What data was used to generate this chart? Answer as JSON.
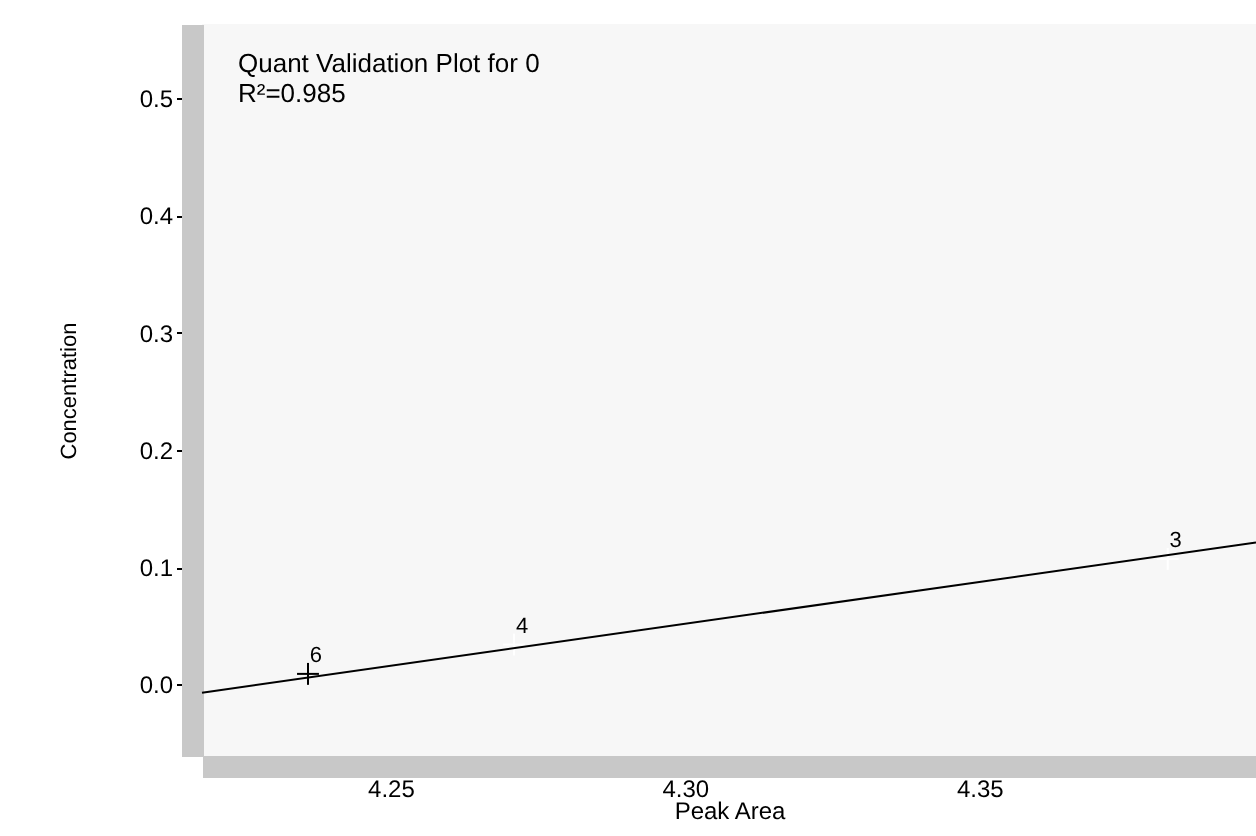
{
  "chart_data": {
    "type": "scatter",
    "title": "Quant Validation Plot for 0",
    "subtitle": "R²=0.985",
    "xlabel": "Peak Area",
    "ylabel": "Concentration",
    "xlim": [
      4.218,
      4.397
    ],
    "ylim": [
      -0.061,
      0.563
    ],
    "xticks": [
      {
        "value": 4.22,
        "label": null
      },
      {
        "value": 4.23,
        "label": null
      },
      {
        "value": 4.24,
        "label": null
      },
      {
        "value": 4.25,
        "label": "4.25"
      },
      {
        "value": 4.26,
        "label": null
      },
      {
        "value": 4.27,
        "label": null
      },
      {
        "value": 4.28,
        "label": null
      },
      {
        "value": 4.29,
        "label": null
      },
      {
        "value": 4.3,
        "label": "4.30"
      },
      {
        "value": 4.31,
        "label": null
      },
      {
        "value": 4.32,
        "label": null
      },
      {
        "value": 4.33,
        "label": null
      },
      {
        "value": 4.34,
        "label": null
      },
      {
        "value": 4.35,
        "label": "4.35"
      },
      {
        "value": 4.36,
        "label": null
      },
      {
        "value": 4.37,
        "label": null
      },
      {
        "value": 4.38,
        "label": null
      },
      {
        "value": 4.39,
        "label": null
      }
    ],
    "yticks": [
      {
        "value": 0,
        "label": "0.0"
      },
      {
        "value": 0.1,
        "label": "0.1"
      },
      {
        "value": 0.2,
        "label": "0.2"
      },
      {
        "value": 0.3,
        "label": "0.3"
      },
      {
        "value": 0.4,
        "label": "0.4"
      },
      {
        "value": 0.5,
        "label": "0.5"
      }
    ],
    "grid": false,
    "legend": false,
    "series": [
      {
        "type": "scatter",
        "marker": "cross",
        "x": [
          4.236,
          4.271,
          4.382
        ],
        "values": [
          0.009,
          0.034,
          0.107
        ],
        "colors": [
          "#000000",
          "#ffffff",
          "#ffffff"
        ]
      },
      {
        "type": "line",
        "line_style": "solid",
        "color": "#000000",
        "x": [
          4.218,
          4.397
        ],
        "values": [
          -0.007,
          0.121
        ]
      }
    ],
    "annotations": [
      {
        "text": "6",
        "x": 4.236,
        "y": 0.009
      },
      {
        "text": "4",
        "x": 4.271,
        "y": 0.034
      },
      {
        "text": "3",
        "x": 4.382,
        "y": 0.107
      }
    ]
  }
}
